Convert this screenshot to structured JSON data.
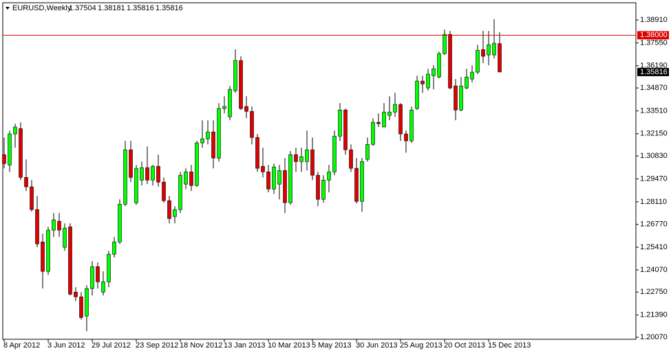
{
  "chart_data": {
    "type": "candlestick",
    "symbol": "EURUSD,Weekly",
    "categories": [
      "8 Apr 2012",
      null,
      null,
      null,
      null,
      null,
      null,
      null,
      "3 Jun 2012",
      null,
      null,
      null,
      null,
      null,
      null,
      null,
      "29 Jul 2012",
      null,
      null,
      null,
      null,
      null,
      null,
      null,
      "23 Sep 2012",
      null,
      null,
      null,
      null,
      null,
      null,
      null,
      "18 Nov 2012",
      null,
      null,
      null,
      null,
      null,
      null,
      null,
      "13 Jan 2013",
      null,
      null,
      null,
      null,
      null,
      null,
      null,
      "10 Mar 2013",
      null,
      null,
      null,
      null,
      null,
      null,
      null,
      "5 May 2013",
      null,
      null,
      null,
      null,
      null,
      null,
      null,
      "30 Jun 2013",
      null,
      null,
      null,
      null,
      null,
      null,
      null,
      "25 Aug 2013",
      null,
      null,
      null,
      null,
      null,
      null,
      null,
      "20 Oct 2013",
      null,
      null,
      null,
      null,
      null,
      null,
      null,
      "15 Dec 2013",
      null,
      null
    ],
    "open": [
      1.3091,
      1.303,
      1.3214,
      1.3246,
      1.2956,
      1.29,
      1.2765,
      1.2573,
      1.2398,
      1.2643,
      1.2696,
      1.2541,
      1.2663,
      1.2275,
      1.2247,
      1.2133,
      1.2296,
      1.2426,
      1.2275,
      1.2336,
      1.25,
      1.2573,
      1.2797,
      1.312,
      1.2805,
      1.294,
      1.3014,
      1.294,
      1.3022,
      1.2928,
      1.2818,
      1.2724,
      1.2765,
      1.2916,
      1.2989,
      1.2908,
      1.3161,
      1.3185,
      1.3226,
      1.3071,
      1.3365,
      1.3316,
      1.3471,
      1.365,
      1.3377,
      1.3348,
      1.3193,
      1.3022,
      1.2989,
      1.2887,
      1.2916,
      1.2997,
      1.2806,
      1.3091,
      1.305,
      1.305,
      1.312,
      1.2969,
      1.2826,
      1.294,
      1.2989,
      1.3201,
      1.3356,
      1.312,
      1.301,
      1.2814,
      1.3063,
      1.3152,
      1.3283,
      1.3255,
      1.3324,
      1.3344,
      1.3389,
      1.3214,
      1.3173,
      1.3365,
      1.3528,
      1.3487,
      1.356,
      1.3552,
      1.3691,
      1.3805,
      1.3499,
      1.3356,
      1.3487,
      1.354,
      1.3581,
      1.3715,
      1.3683,
      1.3683,
      1.37504
    ],
    "high": [
      1.3193,
      1.3234,
      1.3275,
      1.3283,
      1.3063,
      1.294,
      1.2846,
      1.2622,
      1.2663,
      1.2744,
      1.2744,
      1.2683,
      1.2683,
      1.2304,
      1.2275,
      1.2316,
      1.2459,
      1.2451,
      1.2398,
      1.252,
      1.2602,
      1.2826,
      1.3173,
      1.3173,
      1.303,
      1.305,
      1.314,
      1.303,
      1.3091,
      1.2956,
      1.2846,
      1.2785,
      1.2989,
      1.301,
      1.303,
      1.3173,
      1.3295,
      1.3295,
      1.3295,
      1.3397,
      1.3438,
      1.3499,
      1.3716,
      1.3675,
      1.3438,
      1.3377,
      1.3214,
      1.3132,
      1.303,
      1.3038,
      1.303,
      1.3071,
      1.3112,
      1.3132,
      1.3132,
      1.3234,
      1.3193,
      1.2989,
      1.2969,
      1.303,
      1.3234,
      1.3397,
      1.3365,
      1.3152,
      1.3071,
      1.3071,
      1.3193,
      1.3307,
      1.3336,
      1.3397,
      1.3438,
      1.3458,
      1.3397,
      1.3234,
      1.3377,
      1.356,
      1.356,
      1.3601,
      1.3622,
      1.3703,
      1.3834,
      1.3826,
      1.354,
      1.3552,
      1.3601,
      1.3622,
      1.3744,
      1.3826,
      1.3826,
      1.3895,
      1.38181
    ],
    "low": [
      1.301,
      1.2989,
      1.3132,
      1.294,
      1.2875,
      1.2753,
      1.2541,
      1.2296,
      1.2377,
      1.2602,
      1.2602,
      1.252,
      1.2255,
      1.2222,
      1.2112,
      1.2043,
      1.2255,
      1.2296,
      1.2255,
      1.2304,
      1.248,
      1.2561,
      1.2785,
      1.2928,
      1.2793,
      1.2908,
      1.2916,
      1.2908,
      1.29,
      1.2806,
      1.2683,
      1.2683,
      1.2745,
      1.2887,
      1.2875,
      1.29,
      1.3132,
      1.3152,
      1.301,
      1.305,
      1.3336,
      1.3295,
      1.3458,
      1.3356,
      1.3308,
      1.3152,
      1.2989,
      1.2956,
      1.2867,
      1.2859,
      1.2826,
      1.2744,
      1.2793,
      1.2989,
      1.2989,
      1.2997,
      1.294,
      1.2785,
      1.2806,
      1.2867,
      1.2969,
      1.3173,
      1.3091,
      1.2989,
      1.2801,
      1.2752,
      1.305,
      1.3144,
      1.3255,
      1.3255,
      1.3295,
      1.3316,
      1.3173,
      1.3103,
      1.3161,
      1.3356,
      1.3458,
      1.3471,
      1.3479,
      1.3544,
      1.3683,
      1.3479,
      1.3295,
      1.3348,
      1.3479,
      1.352,
      1.3569,
      1.3634,
      1.3622,
      1.3662,
      1.35816
    ],
    "close": [
      1.3038,
      1.3214,
      1.3255,
      1.2956,
      1.29,
      1.2765,
      1.2561,
      1.2398,
      1.2643,
      1.2704,
      1.2643,
      1.2655,
      1.2263,
      1.2247,
      1.2124,
      1.2296,
      1.2426,
      1.2336,
      1.2336,
      1.25,
      1.2573,
      1.2797,
      1.312,
      1.2956,
      1.301,
      1.3014,
      1.294,
      1.3022,
      1.2928,
      1.2818,
      1.2712,
      1.2765,
      1.2969,
      1.2989,
      1.2908,
      1.3161,
      1.3185,
      1.3226,
      1.3071,
      1.3365,
      1.3377,
      1.3479,
      1.365,
      1.3365,
      1.3348,
      1.3193,
      1.301,
      1.2989,
      1.2887,
      1.3018,
      1.2997,
      1.2806,
      1.3091,
      1.305,
      1.3079,
      1.312,
      1.2969,
      1.2826,
      1.294,
      1.2989,
      1.3201,
      1.3356,
      1.312,
      1.301,
      1.2814,
      1.305,
      1.3152,
      1.3283,
      1.3275,
      1.3344,
      1.3344,
      1.3389,
      1.3214,
      1.3173,
      1.3356,
      1.3528,
      1.3511,
      1.3569,
      1.3601,
      1.3691,
      1.3805,
      1.3487,
      1.3356,
      1.3499,
      1.3552,
      1.3581,
      1.3711,
      1.3675,
      1.3744,
      1.3752,
      1.35816
    ],
    "up_color": "#00ff00",
    "down_color": "#e00000",
    "wick_color": "#000000",
    "ylim": [
      1.1995,
      1.3993
    ],
    "yticks": [
      {
        "value": 1.3891,
        "label": "1.38910"
      },
      {
        "value": 1.3755,
        "label": "1.37550"
      },
      {
        "value": 1.3619,
        "label": "1.36190"
      },
      {
        "value": 1.3487,
        "label": "1.34870"
      },
      {
        "value": 1.3351,
        "label": "1.33510"
      },
      {
        "value": 1.3215,
        "label": "1.32150"
      },
      {
        "value": 1.3083,
        "label": "1.30830"
      },
      {
        "value": 1.2947,
        "label": "1.29470"
      },
      {
        "value": 1.2811,
        "label": "1.28110"
      },
      {
        "value": 1.2677,
        "label": "1.26770"
      },
      {
        "value": 1.2541,
        "label": "1.25410"
      },
      {
        "value": 1.2407,
        "label": "1.24070"
      },
      {
        "value": 1.2275,
        "label": "1.22750"
      },
      {
        "value": 1.2139,
        "label": "1.21390"
      },
      {
        "value": 1.2007,
        "label": "1.20070"
      }
    ],
    "price_line": {
      "value": 1.38,
      "label": "1.38000",
      "color": "#e00000"
    },
    "grid": false
  }
}
